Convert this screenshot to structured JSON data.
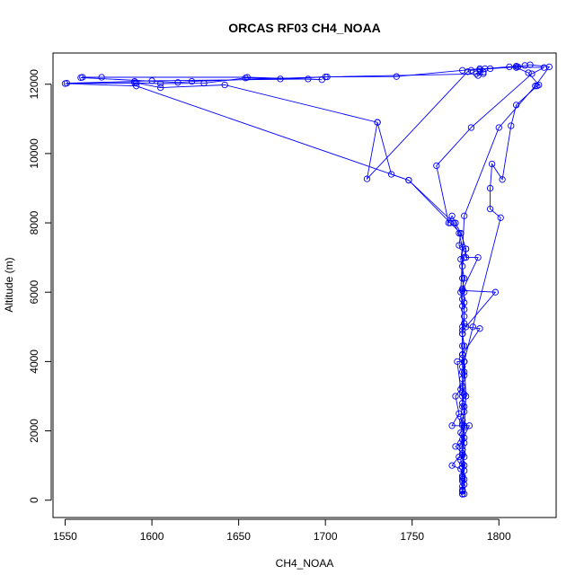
{
  "chart_data": {
    "type": "line",
    "title": "ORCAS RF03 CH4_NOAA",
    "xlabel": "CH4_NOAA",
    "ylabel": "Altitude (m)",
    "xlim": [
      1543,
      1833
    ],
    "ylim": [
      -500,
      12900
    ],
    "x_ticks": [
      1550,
      1600,
      1650,
      1700,
      1750,
      1800
    ],
    "y_ticks": [
      0,
      2000,
      4000,
      6000,
      8000,
      10000,
      12000
    ],
    "grid": false,
    "legend": "none",
    "series": [
      {
        "color": "#0000ff",
        "marker": "open-circle",
        "points": [
          [
            1779,
            170
          ],
          [
            1779,
            250
          ],
          [
            1779,
            400
          ],
          [
            1779,
            550
          ],
          [
            1779,
            700
          ],
          [
            1779,
            950
          ],
          [
            1778,
            1150
          ],
          [
            1779,
            1350
          ],
          [
            1779,
            1550
          ],
          [
            1779,
            1750
          ],
          [
            1778,
            1950
          ],
          [
            1779,
            2150
          ],
          [
            1778,
            2400
          ],
          [
            1779,
            2700
          ],
          [
            1779,
            3000
          ],
          [
            1779,
            3250
          ],
          [
            1779,
            3500
          ],
          [
            1779,
            3700
          ],
          [
            1780,
            4000
          ],
          [
            1779,
            4200
          ],
          [
            1779,
            4450
          ],
          [
            1779,
            4800
          ],
          [
            1779,
            5000
          ],
          [
            1780,
            5300
          ],
          [
            1780,
            5700
          ],
          [
            1780,
            6000
          ],
          [
            1779,
            6400
          ],
          [
            1779,
            6750
          ],
          [
            1780,
            7000
          ],
          [
            1781,
            7250
          ],
          [
            1778,
            7700
          ],
          [
            1775,
            8000
          ],
          [
            1773,
            8200
          ],
          [
            1771,
            8000
          ],
          [
            1764,
            9650
          ],
          [
            1784,
            10750
          ],
          [
            1819,
            12300
          ],
          [
            1826,
            12480
          ],
          [
            1811,
            12500
          ],
          [
            1795,
            12450
          ],
          [
            1789,
            12450
          ],
          [
            1779,
            12400
          ],
          [
            1741,
            12220
          ],
          [
            1701,
            12210
          ],
          [
            1674,
            12150
          ],
          [
            1654,
            12180
          ],
          [
            1630,
            12030
          ],
          [
            1605,
            12020
          ],
          [
            1590,
            12040
          ],
          [
            1550,
            12020
          ],
          [
            1591,
            11950
          ],
          [
            1748,
            9230
          ],
          [
            1774,
            8000
          ],
          [
            1777,
            7700
          ],
          [
            1779,
            7300
          ],
          [
            1778,
            6950
          ],
          [
            1780,
            6400
          ],
          [
            1779,
            6100
          ],
          [
            1779,
            5800
          ],
          [
            1780,
            5500
          ],
          [
            1780,
            5100
          ],
          [
            1779,
            4800
          ],
          [
            1780,
            4450
          ],
          [
            1779,
            4100
          ],
          [
            1779,
            3850
          ],
          [
            1780,
            3600
          ],
          [
            1779,
            3300
          ],
          [
            1780,
            3050
          ],
          [
            1779,
            2800
          ],
          [
            1780,
            2550
          ],
          [
            1779,
            2300
          ],
          [
            1780,
            2150
          ],
          [
            1779,
            1900
          ],
          [
            1780,
            1650
          ],
          [
            1779,
            1450
          ],
          [
            1780,
            1250
          ],
          [
            1779,
            1050
          ],
          [
            1780,
            850
          ],
          [
            1779,
            650
          ],
          [
            1780,
            450
          ],
          [
            1779,
            280
          ],
          [
            1780,
            180
          ]
        ]
      },
      {
        "color": "#0000ff",
        "marker": "open-circle",
        "points": [
          [
            1779,
            600
          ],
          [
            1778,
            900
          ],
          [
            1773,
            1000
          ],
          [
            1777,
            1250
          ],
          [
            1779,
            1350
          ],
          [
            1775,
            1550
          ],
          [
            1778,
            1650
          ],
          [
            1783,
            2150
          ],
          [
            1773,
            2150
          ],
          [
            1777,
            2500
          ],
          [
            1775,
            3000
          ],
          [
            1778,
            3200
          ],
          [
            1776,
            4000
          ],
          [
            1780,
            4000
          ],
          [
            1779,
            4200
          ],
          [
            1789,
            4950
          ],
          [
            1781,
            5000
          ],
          [
            1798,
            6000
          ],
          [
            1779,
            6050
          ],
          [
            1788,
            7000
          ],
          [
            1781,
            7000
          ],
          [
            1781,
            7250
          ],
          [
            1777,
            7350
          ],
          [
            1778,
            7700
          ],
          [
            1772,
            8000
          ],
          [
            1748,
            9230
          ],
          [
            1738,
            9400
          ],
          [
            1730,
            10900
          ],
          [
            1642,
            11980
          ],
          [
            1605,
            11900
          ],
          [
            1591,
            12040
          ],
          [
            1551,
            12030
          ],
          [
            1590,
            12080
          ],
          [
            1600,
            12100
          ],
          [
            1690,
            12150
          ],
          [
            1698,
            12130
          ],
          [
            1655,
            12200
          ],
          [
            1571,
            12200
          ],
          [
            1560,
            12200
          ],
          [
            1559,
            12190
          ],
          [
            1615,
            12050
          ],
          [
            1623,
            12080
          ],
          [
            1700,
            12210
          ],
          [
            1791,
            12300
          ],
          [
            1788,
            12250
          ],
          [
            1787,
            12300
          ],
          [
            1791,
            12350
          ],
          [
            1789,
            12410
          ],
          [
            1792,
            12450
          ],
          [
            1810,
            12520
          ],
          [
            1815,
            12540
          ],
          [
            1818,
            12560
          ],
          [
            1829,
            12500
          ],
          [
            1821,
            11950
          ],
          [
            1800,
            10750
          ],
          [
            1780,
            8200
          ],
          [
            1778,
            6000
          ],
          [
            1779,
            5600
          ],
          [
            1779,
            4900
          ],
          [
            1779,
            4200
          ],
          [
            1780,
            3700
          ],
          [
            1779,
            3100
          ],
          [
            1780,
            2700
          ],
          [
            1779,
            2200
          ],
          [
            1780,
            1800
          ],
          [
            1779,
            1450
          ],
          [
            1780,
            1000
          ],
          [
            1779,
            700
          ],
          [
            1779,
            300
          ]
        ]
      },
      {
        "color": "#0000ff",
        "marker": "open-circle",
        "points": [
          [
            1779,
            180
          ],
          [
            1780,
            600
          ],
          [
            1779,
            1300
          ],
          [
            1780,
            2100
          ],
          [
            1781,
            3000
          ],
          [
            1780,
            4000
          ],
          [
            1785,
            5000
          ],
          [
            1801,
            8150
          ],
          [
            1795,
            8400
          ],
          [
            1795,
            9000
          ],
          [
            1796,
            9700
          ],
          [
            1802,
            9250
          ],
          [
            1807,
            10800
          ],
          [
            1810,
            11400
          ],
          [
            1822,
            11950
          ],
          [
            1823,
            11980
          ],
          [
            1817,
            12330
          ],
          [
            1810,
            12480
          ],
          [
            1806,
            12500
          ],
          [
            1784,
            12400
          ],
          [
            1782,
            12360
          ],
          [
            1724,
            9270
          ],
          [
            1730,
            10900
          ]
        ]
      }
    ]
  }
}
